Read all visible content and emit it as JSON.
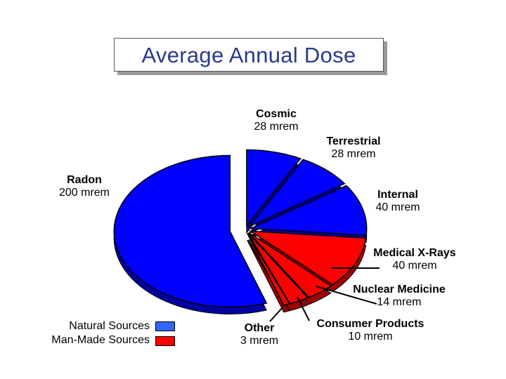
{
  "chart_data": {
    "type": "pie",
    "title": "Average Annual Dose",
    "unit": "mrem",
    "slices": [
      {
        "name": "Cosmic",
        "value": 28,
        "label": "28 mrem",
        "group": "natural"
      },
      {
        "name": "Terrestrial",
        "value": 28,
        "label": "28 mrem",
        "group": "natural"
      },
      {
        "name": "Internal",
        "value": 40,
        "label": "40 mrem",
        "group": "natural"
      },
      {
        "name": "Medical X-Rays",
        "value": 40,
        "label": "40 mrem",
        "group": "man-made"
      },
      {
        "name": "Nuclear Medicine",
        "value": 14,
        "label": "14 mrem",
        "group": "man-made"
      },
      {
        "name": "Consumer Products",
        "value": 10,
        "label": "10 mrem",
        "group": "man-made"
      },
      {
        "name": "Other",
        "value": 3,
        "label": "3 mrem",
        "group": "man-made"
      },
      {
        "name": "Radon",
        "value": 200,
        "label": "200 mrem",
        "group": "natural"
      }
    ],
    "legend": [
      {
        "label": "Natural Sources",
        "color": "#3366ff"
      },
      {
        "label": "Man-Made Sources",
        "color": "#ff0000"
      }
    ],
    "legend_position": "bottom-left",
    "exploded": true,
    "three_d": true
  },
  "colors": {
    "natural_top": "#0000ff",
    "natural_side": "#0000a0",
    "manmade_top": "#ff0000",
    "manmade_side": "#a00000",
    "title_text": "#2a3a8a"
  }
}
